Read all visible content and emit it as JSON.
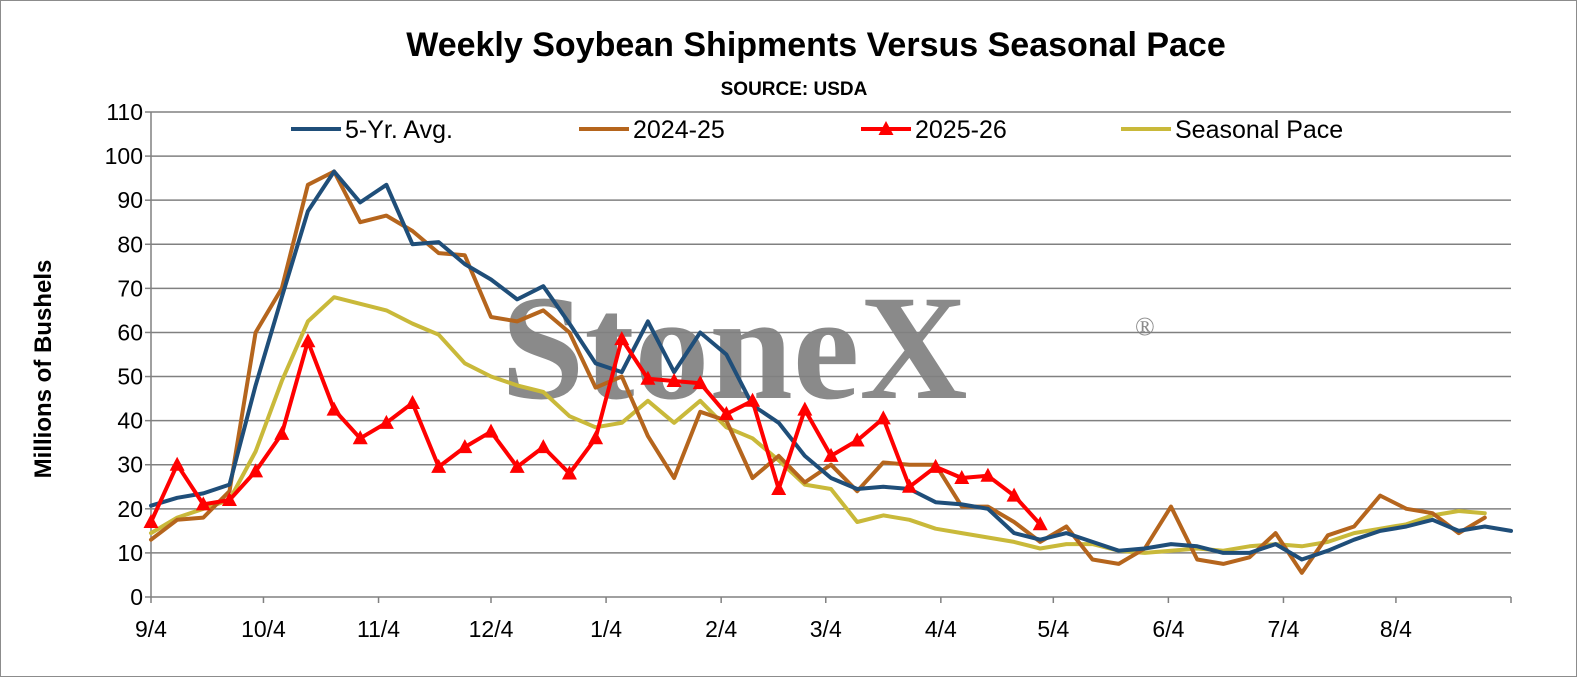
{
  "colors": {
    "five_yr": "#1f4e79",
    "y2024": "#b5651d",
    "y2025": "#ff0000",
    "seasonal": "#c9b93a",
    "grid": "#808080",
    "watermark": "#8a8a8a"
  },
  "watermark": {
    "text": "StoneX",
    "reg": "®"
  },
  "chart_data": {
    "type": "line",
    "title": "Weekly Soybean Shipments Versus Seasonal Pace",
    "subtitle": "SOURCE: USDA",
    "ylabel": "Millions of Bushels",
    "ylim": [
      0,
      110
    ],
    "yticks": [
      0,
      10,
      20,
      30,
      40,
      50,
      60,
      70,
      80,
      90,
      100,
      110
    ],
    "grid": true,
    "legend_position": "top",
    "xticks": [
      "9/4",
      "10/4",
      "11/4",
      "12/4",
      "1/4",
      "2/4",
      "3/4",
      "4/4",
      "5/4",
      "6/4",
      "7/4",
      "8/4"
    ],
    "xtick_weeks": [
      0,
      4.3,
      8.7,
      13,
      17.4,
      21.8,
      25.8,
      30.2,
      34.5,
      38.9,
      43.3,
      47.6
    ],
    "week_count": 53,
    "series": [
      {
        "name": "5-Yr. Avg.",
        "color_key": "five_yr",
        "marker": "none",
        "values": [
          20.7,
          22.5,
          23.5,
          25.5,
          48,
          68,
          87.5,
          96.5,
          89.5,
          93.5,
          80,
          80.5,
          75.5,
          72,
          67.5,
          70.5,
          62,
          53,
          51,
          62.5,
          51,
          60,
          55,
          43.5,
          39.5,
          32,
          27,
          24.5,
          25,
          24.5,
          21.5,
          21,
          20,
          14.5,
          13,
          14.5,
          12.5,
          10.5,
          11,
          12,
          11.5,
          10,
          10,
          12,
          8.5,
          10.5,
          13,
          15,
          16,
          17.5,
          15,
          16,
          15
        ]
      },
      {
        "name": "2024-25",
        "color_key": "y2024",
        "marker": "none",
        "values": [
          13,
          17.5,
          18,
          24,
          60,
          70,
          93.5,
          96.5,
          85,
          86.5,
          83,
          78,
          77.5,
          63.5,
          62.5,
          65,
          60,
          47.5,
          50,
          36.5,
          27,
          42,
          40,
          27,
          32,
          26,
          30,
          24,
          30.5,
          30,
          30,
          20.5,
          20.5,
          17,
          12.5,
          16,
          8.5,
          7.5,
          11,
          20.5,
          8.5,
          7.5,
          9,
          14.5,
          5.5,
          14,
          16,
          23,
          20,
          19,
          14.5,
          18
        ]
      },
      {
        "name": "2025-26",
        "color_key": "y2025",
        "marker": "triangle",
        "values": [
          17,
          30,
          21,
          22,
          28.5,
          37,
          58,
          42.5,
          36,
          39.5,
          44,
          29.5,
          34,
          37.5,
          29.5,
          34,
          28,
          36,
          58.5,
          49.5,
          49,
          48.5,
          41.5,
          44.5,
          24.5,
          42.5,
          32,
          35.5,
          40.5,
          25,
          29.5,
          27,
          27.5,
          23,
          16.5
        ]
      },
      {
        "name": "Seasonal Pace",
        "color_key": "seasonal",
        "marker": "none",
        "values": [
          14.5,
          18,
          20,
          22,
          33,
          49,
          62.5,
          68,
          66.5,
          65,
          62,
          59.5,
          53,
          50,
          48,
          46.5,
          41,
          38.5,
          39.5,
          44.5,
          39.5,
          44.5,
          38.5,
          36,
          31,
          25.5,
          24.5,
          17,
          18.5,
          17.5,
          15.5,
          14.5,
          13.5,
          12.5,
          11,
          12,
          12,
          10.5,
          10,
          10.5,
          11,
          10.5,
          11.5,
          12,
          11.5,
          12.5,
          14.5,
          15.5,
          16.5,
          18.5,
          19.5,
          19
        ]
      }
    ]
  }
}
